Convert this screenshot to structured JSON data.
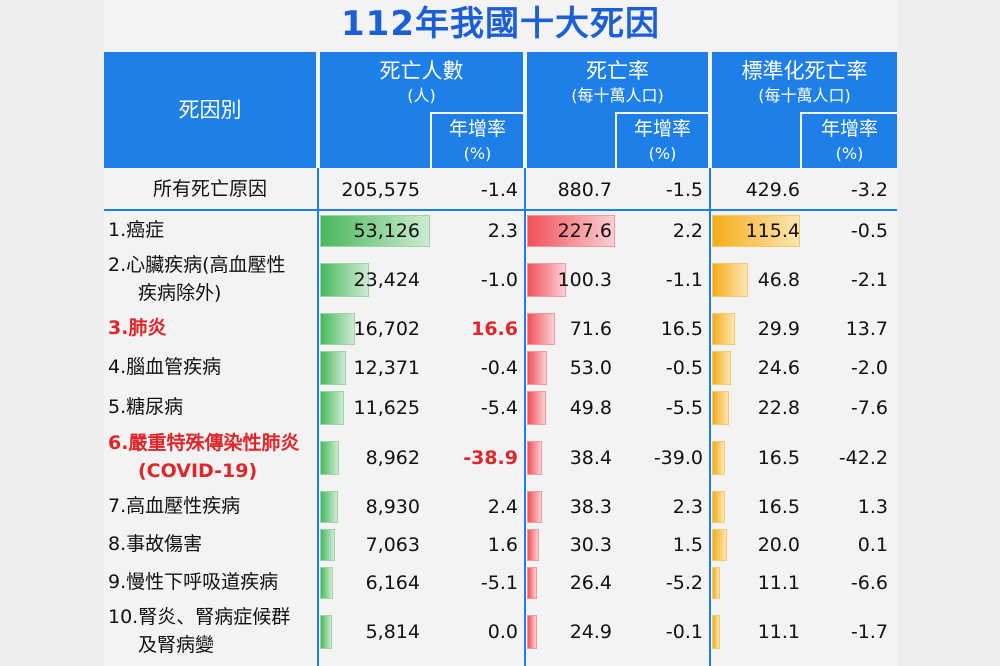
{
  "title": "112年我國十大死因",
  "headers": {
    "cause": "死因別",
    "deaths": "死亡人數",
    "deaths_unit": "(人)",
    "rate": "死亡率",
    "rate_unit": "(每十萬人口)",
    "std_rate": "標準化死亡率",
    "std_rate_unit": "(每十萬人口)",
    "growth": "年增率",
    "growth_unit": "(%)"
  },
  "chart_data": {
    "type": "table",
    "total": {
      "label": "所有死亡原因",
      "deaths": "205,575",
      "deaths_growth": "-1.4",
      "rate": "880.7",
      "rate_growth": "-1.5",
      "std_rate": "429.6",
      "std_rate_growth": "-3.2"
    },
    "rows": [
      {
        "line1": "1.癌症",
        "line2": "",
        "highlight": false,
        "deaths": "53,126",
        "deaths_value": 53126,
        "deaths_growth": "2.3",
        "deaths_growth_highlight": false,
        "rate": "227.6",
        "rate_value": 227.6,
        "rate_growth": "2.2",
        "std_rate": "115.4",
        "std_rate_value": 115.4,
        "std_rate_growth": "-0.5"
      },
      {
        "line1": "2.心臟疾病(高血壓性",
        "line2": "疾病除外)",
        "highlight": false,
        "deaths": "23,424",
        "deaths_value": 23424,
        "deaths_growth": "-1.0",
        "deaths_growth_highlight": false,
        "rate": "100.3",
        "rate_value": 100.3,
        "rate_growth": "-1.1",
        "std_rate": "46.8",
        "std_rate_value": 46.8,
        "std_rate_growth": "-2.1"
      },
      {
        "line1": "3.肺炎",
        "line2": "",
        "highlight": true,
        "deaths": "16,702",
        "deaths_value": 16702,
        "deaths_growth": "16.6",
        "deaths_growth_highlight": true,
        "rate": "71.6",
        "rate_value": 71.6,
        "rate_growth": "16.5",
        "std_rate": "29.9",
        "std_rate_value": 29.9,
        "std_rate_growth": "13.7"
      },
      {
        "line1": "4.腦血管疾病",
        "line2": "",
        "highlight": false,
        "deaths": "12,371",
        "deaths_value": 12371,
        "deaths_growth": "-0.4",
        "deaths_growth_highlight": false,
        "rate": "53.0",
        "rate_value": 53.0,
        "rate_growth": "-0.5",
        "std_rate": "24.6",
        "std_rate_value": 24.6,
        "std_rate_growth": "-2.0"
      },
      {
        "line1": "5.糖尿病",
        "line2": "",
        "highlight": false,
        "deaths": "11,625",
        "deaths_value": 11625,
        "deaths_growth": "-5.4",
        "deaths_growth_highlight": false,
        "rate": "49.8",
        "rate_value": 49.8,
        "rate_growth": "-5.5",
        "std_rate": "22.8",
        "std_rate_value": 22.8,
        "std_rate_growth": "-7.6"
      },
      {
        "line1": "6.嚴重特殊傳染性肺炎",
        "line2": "(COVID-19)",
        "highlight": true,
        "deaths": "8,962",
        "deaths_value": 8962,
        "deaths_growth": "-38.9",
        "deaths_growth_highlight": true,
        "rate": "38.4",
        "rate_value": 38.4,
        "rate_growth": "-39.0",
        "std_rate": "16.5",
        "std_rate_value": 16.5,
        "std_rate_growth": "-42.2"
      },
      {
        "line1": "7.高血壓性疾病",
        "line2": "",
        "highlight": false,
        "deaths": "8,930",
        "deaths_value": 8930,
        "deaths_growth": "2.4",
        "deaths_growth_highlight": false,
        "rate": "38.3",
        "rate_value": 38.3,
        "rate_growth": "2.3",
        "std_rate": "16.5",
        "std_rate_value": 16.5,
        "std_rate_growth": "1.3"
      },
      {
        "line1": "8.事故傷害",
        "line2": "",
        "highlight": false,
        "deaths": "7,063",
        "deaths_value": 7063,
        "deaths_growth": "1.6",
        "deaths_growth_highlight": false,
        "rate": "30.3",
        "rate_value": 30.3,
        "rate_growth": "1.5",
        "std_rate": "20.0",
        "std_rate_value": 20.0,
        "std_rate_growth": "0.1"
      },
      {
        "line1": "9.慢性下呼吸道疾病",
        "line2": "",
        "highlight": false,
        "deaths": "6,164",
        "deaths_value": 6164,
        "deaths_growth": "-5.1",
        "deaths_growth_highlight": false,
        "rate": "26.4",
        "rate_value": 26.4,
        "rate_growth": "-5.2",
        "std_rate": "11.1",
        "std_rate_value": 11.1,
        "std_rate_growth": "-6.6"
      },
      {
        "line1": "10.腎炎、腎病症候群",
        "line2": "及腎病變",
        "highlight": false,
        "deaths": "5,814",
        "deaths_value": 5814,
        "deaths_growth": "0.0",
        "deaths_growth_highlight": false,
        "rate": "24.9",
        "rate_value": 24.9,
        "rate_growth": "-0.1",
        "std_rate": "11.1",
        "std_rate_value": 11.1,
        "std_rate_growth": "-1.7"
      }
    ]
  }
}
